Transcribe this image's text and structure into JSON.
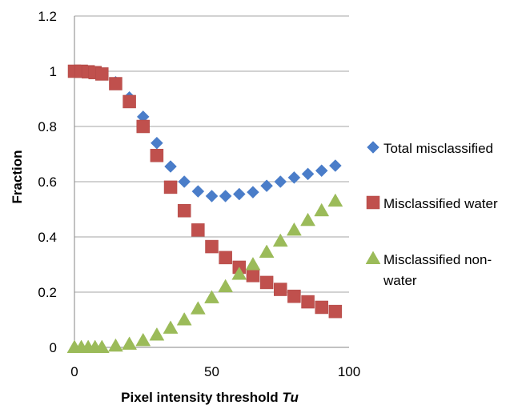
{
  "chart_data": {
    "type": "scatter",
    "title": "",
    "xlabel": "Pixel intensity threshold",
    "xlabel_var": "Tu",
    "ylabel": "Fraction",
    "xlim": [
      0,
      100
    ],
    "ylim": [
      0,
      1.2
    ],
    "x_ticks": [
      "0",
      "50",
      "100"
    ],
    "y_ticks": [
      "0",
      "0.2",
      "0.4",
      "0.6",
      "0.8",
      "1",
      "1.2"
    ],
    "grid": "horizontal",
    "legend_position": "right",
    "x": [
      0,
      2.5,
      5,
      7.5,
      10,
      15,
      20,
      25,
      30,
      35,
      40,
      45,
      50,
      55,
      60,
      65,
      70,
      75,
      80,
      85,
      90,
      95
    ],
    "series": [
      {
        "name": "Total misclassified",
        "marker": "diamond",
        "color": "#4a7dc9",
        "values": [
          1.0,
          1.0,
          1.0,
          0.995,
          0.99,
          0.96,
          0.905,
          0.835,
          0.74,
          0.655,
          0.6,
          0.565,
          0.548,
          0.548,
          0.555,
          0.562,
          0.585,
          0.6,
          0.615,
          0.628,
          0.64,
          0.658
        ]
      },
      {
        "name": "Misclassified water",
        "marker": "square",
        "color": "#c0504d",
        "values": [
          1.0,
          1.0,
          0.998,
          0.995,
          0.99,
          0.955,
          0.89,
          0.8,
          0.695,
          0.58,
          0.495,
          0.425,
          0.365,
          0.325,
          0.29,
          0.26,
          0.235,
          0.21,
          0.185,
          0.165,
          0.145,
          0.13
        ]
      },
      {
        "name": "Misclassified non-water",
        "marker": "triangle",
        "color": "#9bbb59",
        "values": [
          0.0,
          0.0,
          0.0,
          0.0,
          0.0,
          0.005,
          0.012,
          0.025,
          0.045,
          0.07,
          0.1,
          0.14,
          0.18,
          0.22,
          0.265,
          0.3,
          0.345,
          0.385,
          0.425,
          0.46,
          0.495,
          0.53
        ]
      }
    ],
    "legend": [
      {
        "lines": [
          "Total misclassified"
        ]
      },
      {
        "lines": [
          "Misclassified water"
        ]
      },
      {
        "lines": [
          "Misclassified non-",
          "water"
        ]
      }
    ]
  }
}
